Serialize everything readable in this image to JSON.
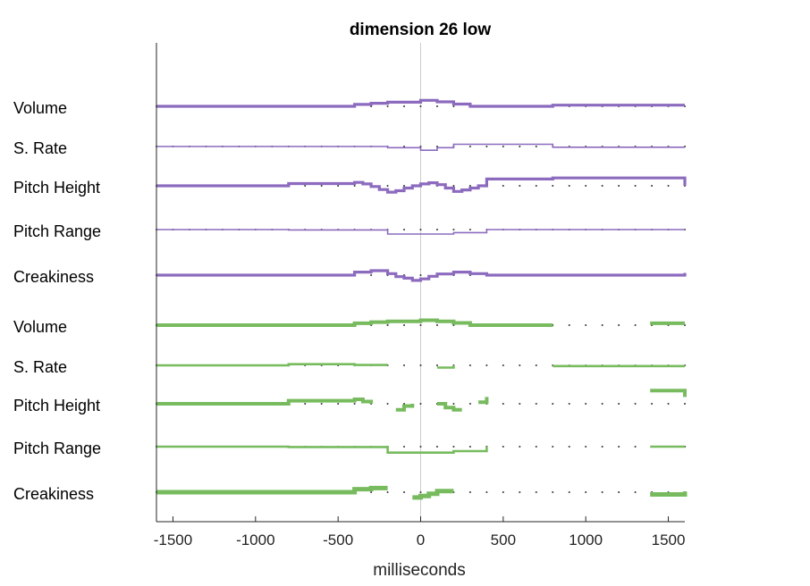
{
  "chart_data": {
    "type": "line",
    "title": "dimension 26 low",
    "xlabel": "milliseconds",
    "xlim": [
      -1600,
      1600
    ],
    "xticks": [
      -1500,
      -1000,
      -500,
      0,
      500,
      1000,
      1500
    ],
    "xtick_labels": [
      "-1500",
      "-1000",
      "-500",
      "0",
      "500",
      "1000",
      "1500"
    ],
    "zero_line": true,
    "dotted_baselines": true,
    "groups": [
      {
        "color": "#8c6bbf",
        "rows": [
          {
            "label": "Volume",
            "width": 3.2,
            "segments": [
              [
                [
                  -1600,
                  0
                ],
                [
                  -400,
                  0
                ],
                [
                  -400,
                  0.5
                ],
                [
                  -300,
                  0.5
                ],
                [
                  -300,
                  0.8
                ],
                [
                  -200,
                  0.8
                ],
                [
                  -200,
                  1.1
                ],
                [
                  0,
                  1.1
                ],
                [
                  0,
                  1.6
                ],
                [
                  100,
                  1.6
                ],
                [
                  100,
                  1.2
                ],
                [
                  200,
                  1.2
                ],
                [
                  200,
                  0.6
                ],
                [
                  300,
                  0.6
                ],
                [
                  300,
                  0
                ],
                [
                  800,
                  0
                ],
                [
                  800,
                  0.3
                ],
                [
                  1600,
                  0.3
                ]
              ]
            ]
          },
          {
            "label": "S. Rate",
            "width": 1.6,
            "segments": [
              [
                [
                  -1600,
                  0
                ],
                [
                  -200,
                  0
                ],
                [
                  -200,
                  -0.3
                ],
                [
                  0,
                  -0.3
                ],
                [
                  0,
                  -1
                ],
                [
                  100,
                  -1
                ],
                [
                  100,
                  -0.3
                ],
                [
                  200,
                  -0.3
                ],
                [
                  200,
                  0.6
                ],
                [
                  800,
                  0.6
                ],
                [
                  800,
                  -0.2
                ],
                [
                  1600,
                  -0.2
                ]
              ]
            ]
          },
          {
            "label": "Pitch Height",
            "width": 3.2,
            "segments": [
              [
                [
                  -1600,
                  0
                ],
                [
                  -800,
                  0
                ],
                [
                  -800,
                  0.6
                ],
                [
                  -400,
                  0.6
                ],
                [
                  -400,
                  0.9
                ],
                [
                  -350,
                  0.9
                ],
                [
                  -350,
                  0.5
                ],
                [
                  -300,
                  0.5
                ],
                [
                  -300,
                  -0.2
                ],
                [
                  -250,
                  -0.2
                ],
                [
                  -250,
                  -1
                ],
                [
                  -200,
                  -1
                ],
                [
                  -200,
                  -1.7
                ],
                [
                  -150,
                  -1.7
                ],
                [
                  -150,
                  -1.3
                ],
                [
                  -100,
                  -1.3
                ],
                [
                  -100,
                  -0.6
                ],
                [
                  -50,
                  -0.6
                ],
                [
                  -50,
                  0
                ],
                [
                  0,
                  0
                ],
                [
                  0,
                  0.5
                ],
                [
                  50,
                  0.5
                ],
                [
                  50,
                  0.8
                ],
                [
                  100,
                  0.8
                ],
                [
                  100,
                  0.3
                ],
                [
                  150,
                  0.3
                ],
                [
                  150,
                  -0.6
                ],
                [
                  200,
                  -0.6
                ],
                [
                  200,
                  -1.5
                ],
                [
                  250,
                  -1.5
                ],
                [
                  250,
                  -1.1
                ],
                [
                  300,
                  -1.1
                ],
                [
                  300,
                  -0.6
                ],
                [
                  350,
                  -0.6
                ],
                [
                  350,
                  0
                ],
                [
                  400,
                  0
                ],
                [
                  400,
                  1.8
                ],
                [
                  800,
                  1.8
                ],
                [
                  800,
                  2.1
                ],
                [
                  1600,
                  2.1
                ],
                [
                  1600,
                  0
                ]
              ]
            ]
          },
          {
            "label": "Pitch Range",
            "width": 1.6,
            "segments": [
              [
                [
                  -1600,
                  0
                ],
                [
                  -800,
                  0
                ],
                [
                  -800,
                  -0.1
                ],
                [
                  -200,
                  -0.1
                ],
                [
                  -200,
                  -1.2
                ],
                [
                  200,
                  -1.2
                ],
                [
                  200,
                  -0.8
                ],
                [
                  400,
                  -0.8
                ],
                [
                  400,
                  0
                ],
                [
                  1600,
                  0
                ]
              ]
            ]
          },
          {
            "label": "Creakiness",
            "width": 3.2,
            "segments": [
              [
                [
                  -1600,
                  0
                ],
                [
                  -400,
                  0
                ],
                [
                  -400,
                  0.8
                ],
                [
                  -300,
                  0.8
                ],
                [
                  -300,
                  1.2
                ],
                [
                  -200,
                  1.2
                ],
                [
                  -200,
                  0.4
                ],
                [
                  -150,
                  0.4
                ],
                [
                  -150,
                  -0.4
                ],
                [
                  -100,
                  -0.4
                ],
                [
                  -100,
                  -0.8
                ],
                [
                  -50,
                  -0.8
                ],
                [
                  -50,
                  -1.4
                ],
                [
                  0,
                  -1.4
                ],
                [
                  0,
                  -1
                ],
                [
                  50,
                  -1
                ],
                [
                  50,
                  -0.3
                ],
                [
                  100,
                  -0.3
                ],
                [
                  100,
                  0.3
                ],
                [
                  200,
                  0.3
                ],
                [
                  200,
                  0.8
                ],
                [
                  300,
                  0.8
                ],
                [
                  300,
                  0.4
                ],
                [
                  400,
                  0.4
                ],
                [
                  400,
                  0
                ],
                [
                  1600,
                  0
                ],
                [
                  1600,
                  0.6
                ]
              ]
            ]
          }
        ]
      },
      {
        "color": "#77bb5e",
        "rows": [
          {
            "label": "Volume",
            "width": 4,
            "segments": [
              [
                [
                  -1600,
                  0
                ],
                [
                  -400,
                  0
                ],
                [
                  -400,
                  0.5
                ],
                [
                  -300,
                  0.5
                ],
                [
                  -300,
                  0.8
                ],
                [
                  -200,
                  0.8
                ],
                [
                  -200,
                  1
                ],
                [
                  0,
                  1
                ],
                [
                  0,
                  1.3
                ],
                [
                  100,
                  1.3
                ],
                [
                  100,
                  1
                ],
                [
                  200,
                  1
                ],
                [
                  200,
                  0.6
                ],
                [
                  300,
                  0.6
                ],
                [
                  300,
                  0
                ],
                [
                  800,
                  0
                ]
              ],
              [
                [
                  1390,
                  0.5
                ],
                [
                  1600,
                  0.5
                ]
              ]
            ]
          },
          {
            "label": "S. Rate",
            "width": 2.6,
            "segments": [
              [
                [
                  -1600,
                  0
                ],
                [
                  -800,
                  0
                ],
                [
                  -800,
                  0.3
                ],
                [
                  -400,
                  0.3
                ],
                [
                  -400,
                  0.1
                ],
                [
                  -200,
                  0.1
                ]
              ],
              [
                [
                  100,
                  -0.6
                ],
                [
                  200,
                  -0.6
                ],
                [
                  200,
                  0
                ]
              ],
              [
                [
                  800,
                  -0.2
                ],
                [
                  1600,
                  -0.2
                ]
              ]
            ]
          },
          {
            "label": "Pitch Height",
            "width": 4,
            "segments": [
              [
                [
                  -1600,
                  0
                ],
                [
                  -800,
                  0
                ],
                [
                  -800,
                  0.8
                ],
                [
                  -400,
                  0.8
                ],
                [
                  -400,
                  1.2
                ],
                [
                  -350,
                  1.2
                ],
                [
                  -350,
                  0.6
                ],
                [
                  -300,
                  0.6
                ],
                [
                  -300,
                  0
                ]
              ],
              [
                [
                  -150,
                  -1.6
                ],
                [
                  -100,
                  -1.6
                ],
                [
                  -100,
                  -0.6
                ],
                [
                  -50,
                  -0.6
                ],
                [
                  -50,
                  0
                ]
              ],
              [
                [
                  100,
                  0
                ],
                [
                  150,
                  0
                ],
                [
                  150,
                  -1
                ],
                [
                  200,
                  -1
                ],
                [
                  200,
                  -1.6
                ],
                [
                  250,
                  -1.6
                ]
              ],
              [
                [
                  350,
                  0.4
                ],
                [
                  400,
                  0.4
                ],
                [
                  400,
                  1.8
                ]
              ],
              [
                [
                  1390,
                  3.5
                ],
                [
                  1600,
                  3.5
                ],
                [
                  1600,
                  1.8
                ]
              ]
            ]
          },
          {
            "label": "Pitch Range",
            "width": 2.6,
            "segments": [
              [
                [
                  -1600,
                  0
                ],
                [
                  -800,
                  0
                ],
                [
                  -800,
                  -0.1
                ],
                [
                  -200,
                  -0.1
                ],
                [
                  -200,
                  -1.6
                ],
                [
                  200,
                  -1.6
                ],
                [
                  200,
                  -1.2
                ],
                [
                  400,
                  -1.2
                ],
                [
                  400,
                  0
                ]
              ],
              [
                [
                  1390,
                  0
                ],
                [
                  1600,
                  0
                ]
              ]
            ]
          },
          {
            "label": "Creakiness",
            "width": 5,
            "segments": [
              [
                [
                  -1600,
                  0
                ],
                [
                  -400,
                  0
                ],
                [
                  -400,
                  0.8
                ],
                [
                  -300,
                  0.8
                ],
                [
                  -300,
                  1.1
                ],
                [
                  -200,
                  1.1
                ]
              ],
              [
                [
                  -50,
                  -1.4
                ],
                [
                  0,
                  -1.4
                ],
                [
                  0,
                  -1
                ],
                [
                  50,
                  -1
                ],
                [
                  50,
                  -0.4
                ],
                [
                  100,
                  -0.4
                ],
                [
                  100,
                  0.3
                ],
                [
                  200,
                  0.3
                ]
              ],
              [
                [
                  1390,
                  -0.6
                ],
                [
                  1600,
                  -0.6
                ],
                [
                  1600,
                  0.2
                ]
              ]
            ]
          }
        ]
      }
    ]
  }
}
